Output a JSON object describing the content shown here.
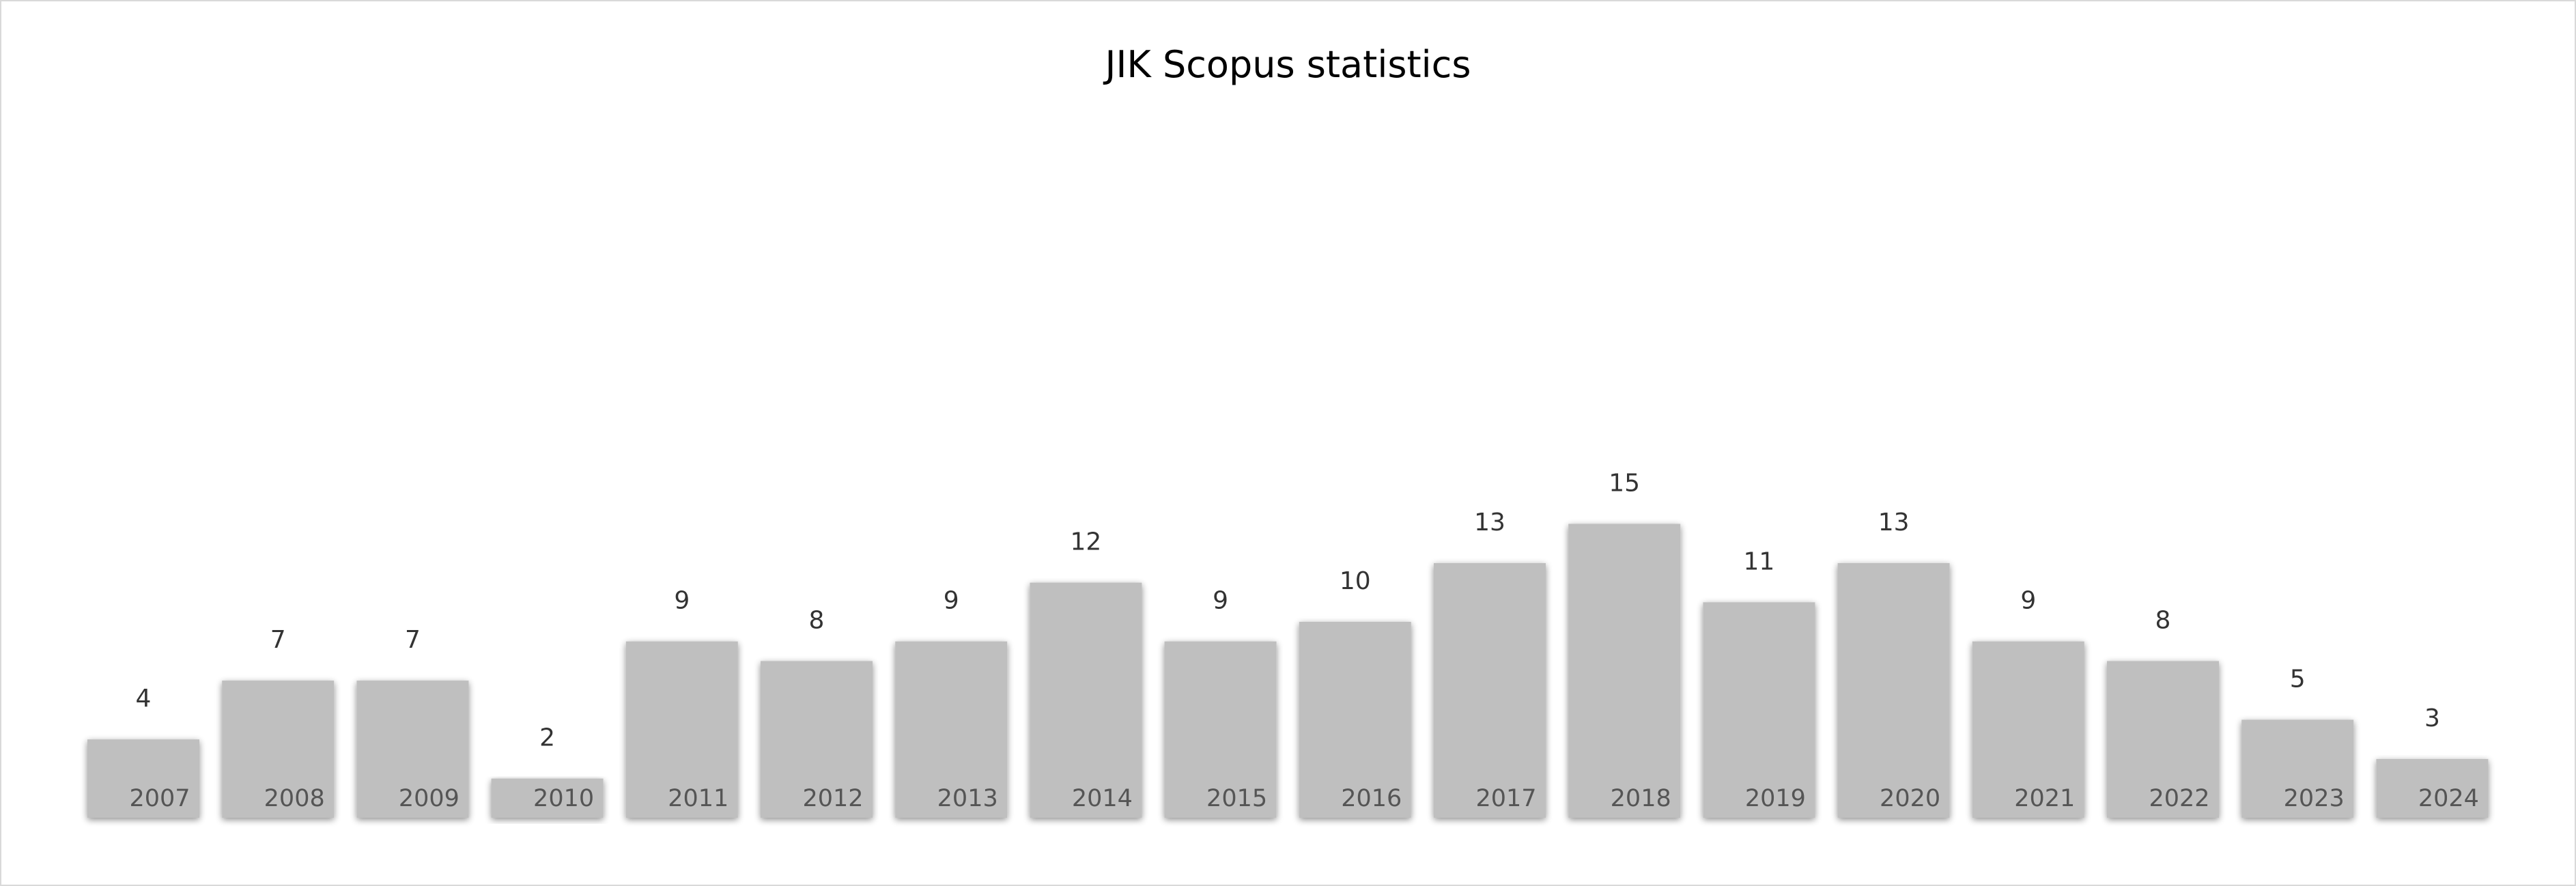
{
  "chart_data": {
    "type": "bar",
    "title": "JIK Scopus statistics",
    "xlabel": "",
    "ylabel": "",
    "categories": [
      "2007",
      "2008",
      "2009",
      "2010",
      "2011",
      "2012",
      "2013",
      "2014",
      "2015",
      "2016",
      "2017",
      "2018",
      "2019",
      "2020",
      "2021",
      "2022",
      "2023",
      "2024"
    ],
    "series": [
      {
        "values": [
          4,
          7,
          7,
          2,
          9,
          8,
          9,
          12,
          9,
          10,
          13,
          15,
          11,
          13,
          9,
          8,
          5,
          3
        ]
      }
    ],
    "ylim": [
      0,
      16
    ],
    "grid": false,
    "legend": "none",
    "data_labels": true,
    "colors": {
      "bar": "#bfbfbf",
      "bar_shadow": "#8c8c8c",
      "value_label": "#333333",
      "tick_label": "#555555"
    }
  }
}
